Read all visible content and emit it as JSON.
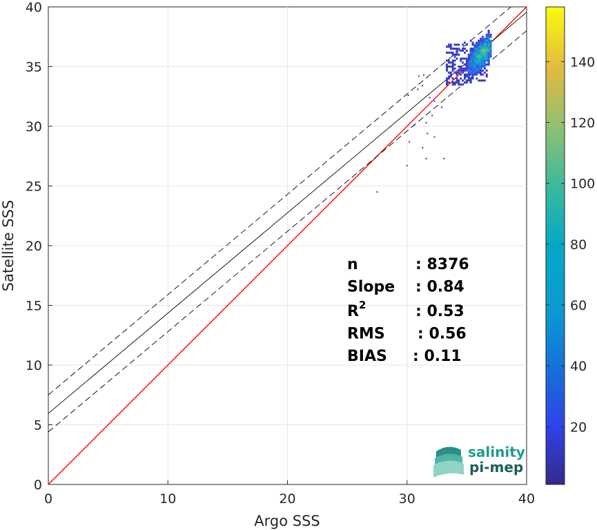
{
  "chart_data": {
    "type": "heatmap",
    "xlabel": "Argo SSS",
    "ylabel": "Satellite SSS",
    "xlim": [
      0,
      40
    ],
    "ylim": [
      0,
      40
    ],
    "x_ticks": [
      "0",
      "10",
      "20",
      "30",
      "40"
    ],
    "y_ticks": [
      "0",
      "5",
      "10",
      "15",
      "20",
      "25",
      "30",
      "35",
      "40"
    ],
    "grid": true,
    "lines": [
      {
        "name": "identity",
        "color": "#ff0000",
        "style": "solid",
        "slope": 1.0,
        "intercept": 0.0
      },
      {
        "name": "fit",
        "color": "#000000",
        "style": "solid",
        "slope": 0.84,
        "intercept": 5.95
      },
      {
        "name": "fit_upper",
        "color": "#000000",
        "style": "dashed",
        "slope": 0.84,
        "intercept": 7.5
      },
      {
        "name": "fit_lower",
        "color": "#000000",
        "style": "dashed",
        "slope": 0.84,
        "intercept": 4.4
      }
    ],
    "density_cluster": {
      "center_x": 36.3,
      "center_y": 36.1,
      "x_range": [
        33.5,
        37.0
      ],
      "y_range": [
        33.5,
        38.0
      ]
    },
    "outliers": [
      [
        27.5,
        24.5
      ],
      [
        30.0,
        26.7
      ],
      [
        31.6,
        27.3
      ],
      [
        33.1,
        27.3
      ],
      [
        30.2,
        28.7
      ],
      [
        31.3,
        28.2
      ],
      [
        31.7,
        29.4
      ],
      [
        32.3,
        29.1
      ],
      [
        30.6,
        30.1
      ],
      [
        31.6,
        30.3
      ],
      [
        32.1,
        30.9
      ],
      [
        30.1,
        32.6
      ],
      [
        31.9,
        32.4
      ],
      [
        30.9,
        33.1
      ],
      [
        31.3,
        33.4
      ],
      [
        32.3,
        32.1
      ],
      [
        31.4,
        34.3
      ],
      [
        32.9,
        31.6
      ],
      [
        31.0,
        34.2
      ]
    ],
    "colorbar": {
      "min": 1,
      "max": 158,
      "ticks": [
        "20",
        "40",
        "60",
        "80",
        "100",
        "120",
        "140"
      ],
      "tick_values": [
        20,
        40,
        60,
        80,
        100,
        120,
        140
      ],
      "colormap": "parula"
    },
    "stats": [
      {
        "label": "n",
        "value": ": 8376"
      },
      {
        "label": "Slope",
        "value": ": 0.84"
      },
      {
        "label": "R",
        "sup": "2",
        "value": ": 0.53"
      },
      {
        "label": "RMS",
        "value": ": 0.56"
      },
      {
        "label": "BIAS",
        "value": ": 0.11"
      }
    ]
  },
  "logo": {
    "line1": "salinity",
    "line2": "pi-mep",
    "color1": "#1f9b8e",
    "color2": "#1b5e5a"
  }
}
